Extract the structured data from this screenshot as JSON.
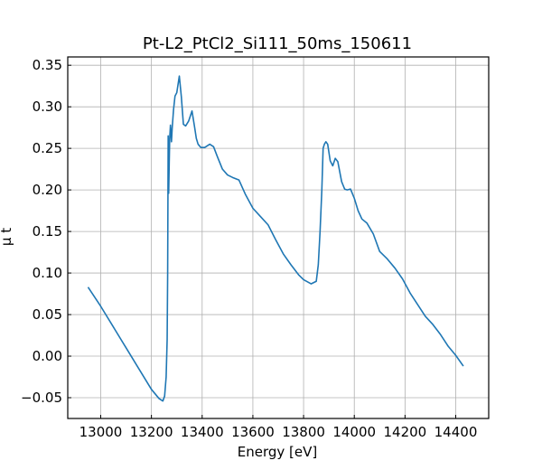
{
  "chart_data": {
    "type": "line",
    "title": "Pt-L2_PtCl2_Si111_50ms_150611",
    "xlabel": "Energy [eV]",
    "ylabel": "μ t",
    "xlim": [
      12870,
      14530
    ],
    "ylim": [
      -0.075,
      0.36
    ],
    "xticks": [
      13000,
      13200,
      13400,
      13600,
      13800,
      14000,
      14200,
      14400
    ],
    "xtick_labels": [
      "13000",
      "13200",
      "13400",
      "13600",
      "13800",
      "14000",
      "14200",
      "14400"
    ],
    "yticks": [
      -0.05,
      0.0,
      0.05,
      0.1,
      0.15,
      0.2,
      0.25,
      0.3,
      0.35
    ],
    "ytick_labels": [
      "−0.05",
      "0.00",
      "0.05",
      "0.10",
      "0.15",
      "0.20",
      "0.25",
      "0.30",
      "0.35"
    ],
    "grid": true,
    "line_color": "#1f77b4",
    "series": [
      {
        "name": "",
        "x": [
          12950,
          13000,
          13050,
          13100,
          13150,
          13200,
          13230,
          13245,
          13252,
          13258,
          13262,
          13264,
          13266,
          13268,
          13270,
          13272,
          13275,
          13279,
          13282,
          13287,
          13293,
          13300,
          13310,
          13318,
          13326,
          13335,
          13347,
          13360,
          13370,
          13377,
          13384,
          13395,
          13410,
          13430,
          13445,
          13460,
          13480,
          13500,
          13520,
          13545,
          13570,
          13600,
          13630,
          13660,
          13690,
          13720,
          13750,
          13780,
          13800,
          13830,
          13850,
          13858,
          13865,
          13872,
          13877,
          13882,
          13888,
          13895,
          13905,
          13915,
          13925,
          13935,
          13950,
          13962,
          13972,
          13985,
          14000,
          14015,
          14030,
          14050,
          14075,
          14100,
          14130,
          14160,
          14190,
          14220,
          14250,
          14280,
          14310,
          14340,
          14370,
          14400,
          14430
        ],
        "y": [
          0.083,
          0.06,
          0.035,
          0.01,
          -0.015,
          -0.04,
          -0.051,
          -0.054,
          -0.048,
          -0.025,
          0.02,
          0.1,
          0.265,
          0.196,
          0.23,
          0.262,
          0.278,
          0.258,
          0.275,
          0.296,
          0.313,
          0.317,
          0.337,
          0.312,
          0.279,
          0.277,
          0.283,
          0.295,
          0.276,
          0.262,
          0.255,
          0.251,
          0.251,
          0.255,
          0.252,
          0.24,
          0.225,
          0.218,
          0.215,
          0.212,
          0.195,
          0.178,
          0.168,
          0.158,
          0.14,
          0.123,
          0.11,
          0.098,
          0.092,
          0.087,
          0.09,
          0.11,
          0.15,
          0.2,
          0.25,
          0.255,
          0.258,
          0.255,
          0.235,
          0.229,
          0.238,
          0.234,
          0.21,
          0.201,
          0.2,
          0.201,
          0.19,
          0.175,
          0.165,
          0.16,
          0.147,
          0.126,
          0.117,
          0.106,
          0.093,
          0.076,
          0.062,
          0.048,
          0.038,
          0.026,
          0.012,
          0.001,
          -0.012
        ]
      }
    ]
  }
}
